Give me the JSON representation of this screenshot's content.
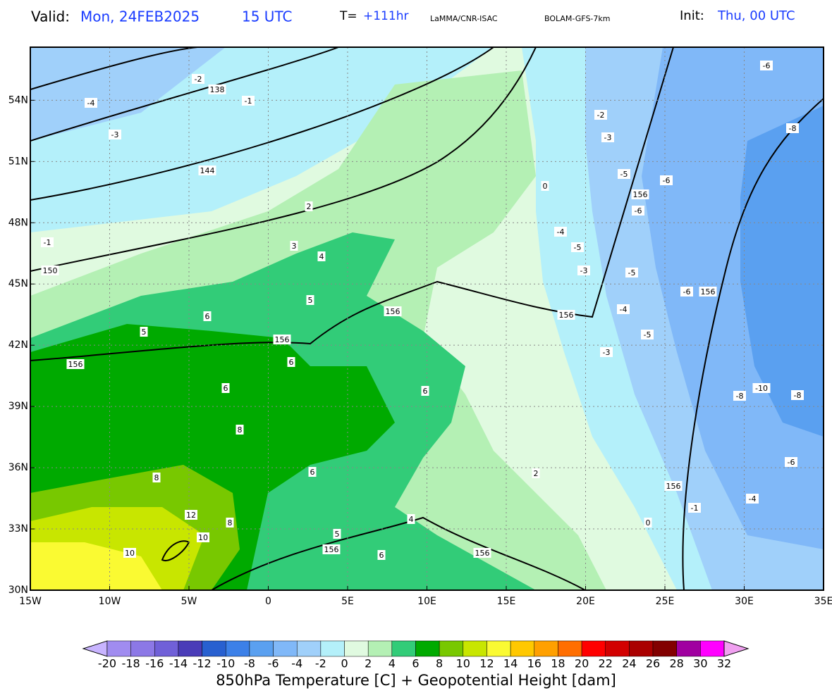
{
  "header": {
    "valid_label": "Valid:",
    "valid_date": "Mon, 24FEB2025",
    "valid_time": "15 UTC",
    "t_label": "T=",
    "t_value": "+111hr",
    "institute": "LaMMA/CNR-ISAC",
    "model": "BOLAM-GFS-7km",
    "init_label": "Init:",
    "init_value": "Thu, 00 UTC"
  },
  "map": {
    "xlim": [
      -15,
      35
    ],
    "ylim": [
      30,
      56.6
    ],
    "xticks": [
      {
        "value": -15,
        "label": "15W"
      },
      {
        "value": -10,
        "label": "10W"
      },
      {
        "value": -5,
        "label": "5W"
      },
      0,
      {
        "value": 5,
        "label": "5E"
      },
      {
        "value": 10,
        "label": "10E"
      },
      {
        "value": 15,
        "label": "15E"
      },
      {
        "value": 20,
        "label": "20E"
      },
      {
        "value": 25,
        "label": "25E"
      },
      {
        "value": 30,
        "label": "30E"
      },
      {
        "value": 35,
        "label": "35E"
      }
    ],
    "yticks": [
      {
        "value": 30,
        "label": "30N"
      },
      {
        "value": 33,
        "label": "33N"
      },
      {
        "value": 36,
        "label": "36N"
      },
      {
        "value": 39,
        "label": "39N"
      },
      {
        "value": 42,
        "label": "42N"
      },
      {
        "value": 45,
        "label": "45N"
      },
      {
        "value": 48,
        "label": "48N"
      },
      {
        "value": 51,
        "label": "51N"
      },
      {
        "value": 54,
        "label": "54N"
      }
    ],
    "grid": true,
    "height_labels": [
      138,
      144,
      150,
      156,
      156,
      156,
      156,
      156,
      156,
      156,
      156,
      156
    ],
    "temperature_labels": [
      -4,
      -3,
      -2,
      -1,
      -1,
      2,
      3,
      4,
      5,
      6,
      5,
      6,
      6,
      8,
      8,
      12,
      10,
      10,
      8,
      6,
      6,
      5,
      6,
      4,
      2,
      0,
      -4,
      -5,
      -3,
      -5,
      -6,
      -6,
      -2,
      -3,
      -6,
      -8,
      -5,
      -6,
      -4,
      -5,
      -3,
      -10,
      -8,
      -8,
      -4,
      -1,
      -6,
      0
    ]
  },
  "colorbar": {
    "title": "850hPa Temperature [C] + Geopotential Height [dam]",
    "ticks": [
      -20,
      -18,
      -16,
      -14,
      -12,
      -10,
      -8,
      -6,
      -4,
      -2,
      0,
      2,
      4,
      6,
      8,
      10,
      12,
      14,
      16,
      18,
      20,
      22,
      24,
      26,
      28,
      30,
      32
    ],
    "colors": [
      "#c8b4ff",
      "#a08cf0",
      "#8c78e6",
      "#7060d8",
      "#4a3cb8",
      "#2860d0",
      "#3c80e8",
      "#5aa0f0",
      "#80b8f8",
      "#a0d0fa",
      "#b4f0fa",
      "#e0fae0",
      "#b4f0b4",
      "#32cc78",
      "#00aa00",
      "#78c800",
      "#c8e600",
      "#fafa32",
      "#ffc800",
      "#ffa000",
      "#ff6e00",
      "#ff0000",
      "#d20000",
      "#aa0000",
      "#820000",
      "#a000a0",
      "#ff00ff",
      "#f0a0f0"
    ]
  }
}
